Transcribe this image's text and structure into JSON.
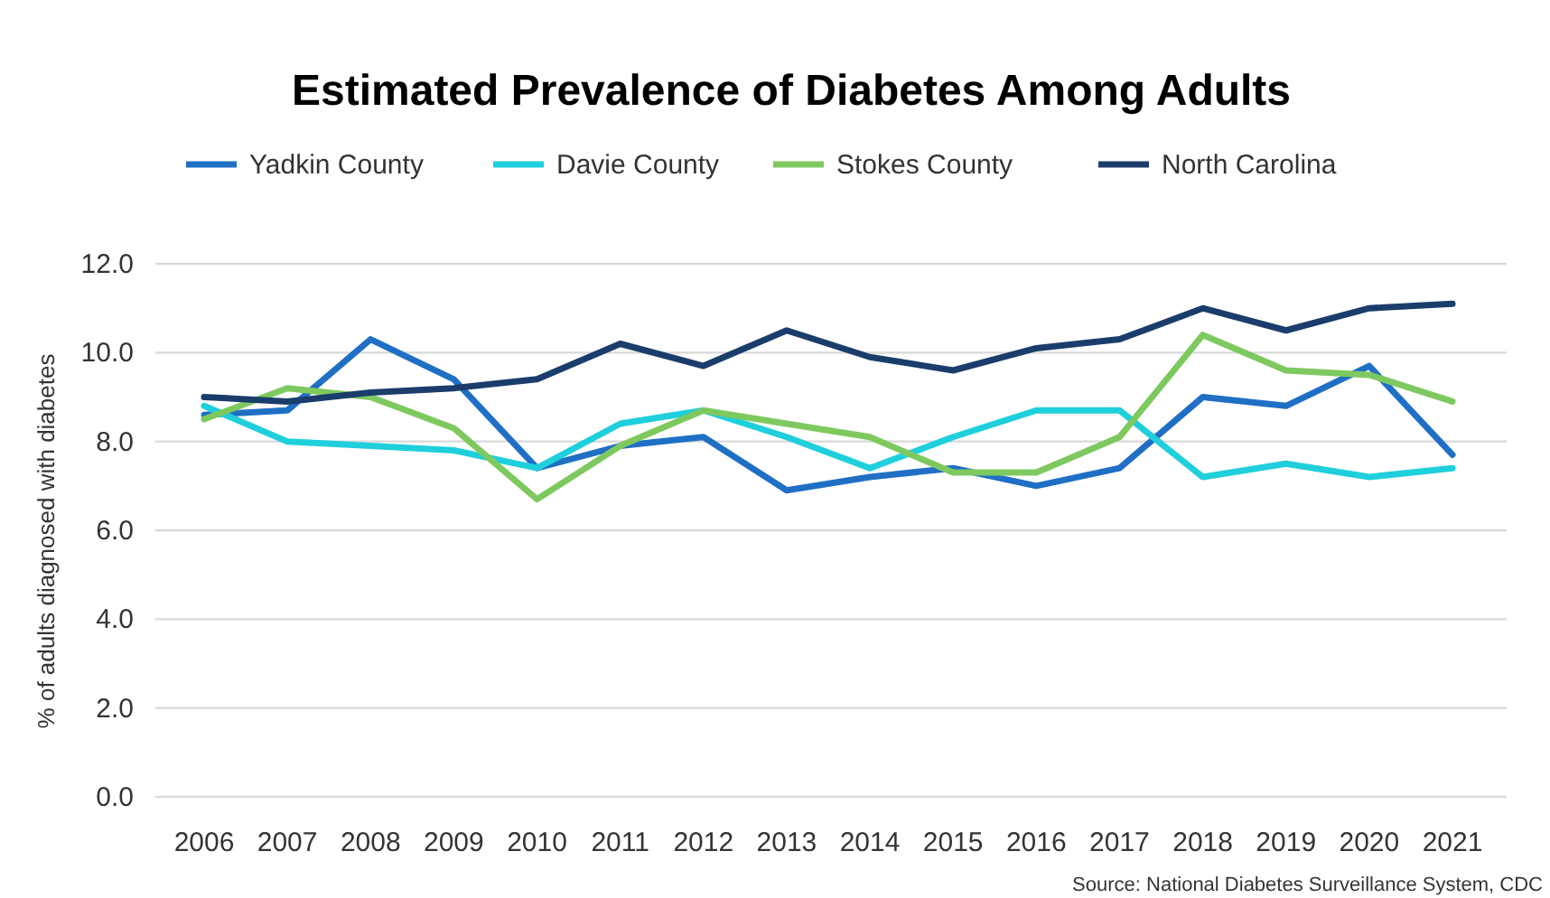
{
  "chart_data": {
    "type": "line",
    "title": "Estimated Prevalence of Diabetes Among Adults",
    "ylabel": "% of adults diagnosed with diabetes",
    "categories": [
      "2006",
      "2007",
      "2008",
      "2009",
      "2010",
      "2011",
      "2012",
      "2013",
      "2014",
      "2015",
      "2016",
      "2017",
      "2018",
      "2019",
      "2020",
      "2021"
    ],
    "series": [
      {
        "name": "Yadkin County",
        "color": "#1f6fc5",
        "values": [
          8.6,
          8.7,
          10.3,
          9.4,
          7.4,
          7.9,
          8.1,
          6.9,
          7.2,
          7.4,
          7.0,
          7.4,
          9.0,
          8.8,
          9.7,
          7.7
        ]
      },
      {
        "name": "Davie County",
        "color": "#1fcfdc",
        "values": [
          8.8,
          8.0,
          7.9,
          7.8,
          7.4,
          8.4,
          8.7,
          8.1,
          7.4,
          8.1,
          8.7,
          8.7,
          7.2,
          7.5,
          7.2,
          7.4
        ]
      },
      {
        "name": "Stokes County",
        "color": "#7ec95f",
        "values": [
          8.5,
          9.2,
          9.0,
          8.3,
          6.7,
          7.9,
          8.7,
          8.4,
          8.1,
          7.3,
          7.3,
          8.1,
          10.4,
          9.6,
          9.5,
          8.9
        ]
      },
      {
        "name": "North Carolina",
        "color": "#1a3d6b",
        "values": [
          9.0,
          8.9,
          9.1,
          9.2,
          9.4,
          10.2,
          9.7,
          10.5,
          9.9,
          9.6,
          10.1,
          10.3,
          11.0,
          10.5,
          11.0,
          11.1
        ]
      }
    ],
    "ylim": [
      0,
      12
    ],
    "yticks": [
      {
        "value": 0,
        "label": "0.0"
      },
      {
        "value": 2,
        "label": "2.0"
      },
      {
        "value": 4,
        "label": "4.0"
      },
      {
        "value": 6,
        "label": "6.0"
      },
      {
        "value": 8,
        "label": "8.0"
      },
      {
        "value": 10,
        "label": "10.0"
      },
      {
        "value": 12,
        "label": "12.0"
      }
    ],
    "grid": "y",
    "legend": "top",
    "marker": "none",
    "line_style": "solid",
    "annotations": [
      "Source: National Diabetes Surveillance System, CDC"
    ]
  }
}
